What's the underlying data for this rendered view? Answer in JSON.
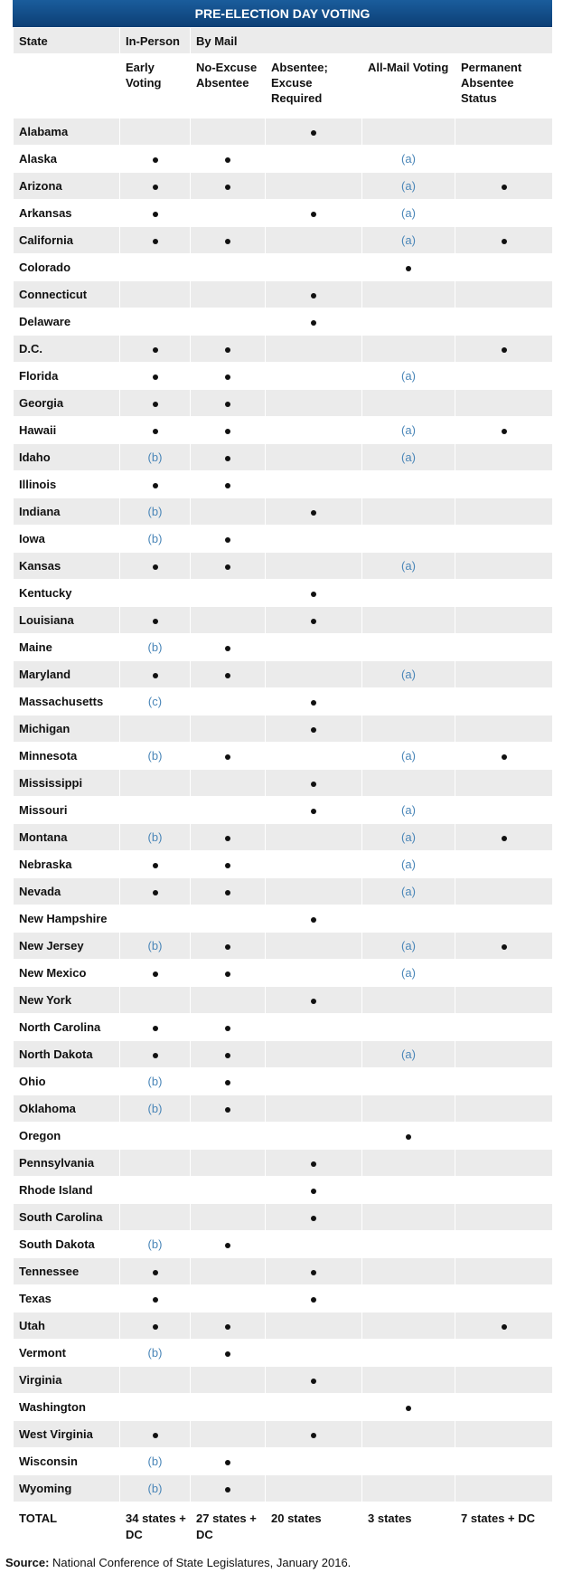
{
  "title": "PRE-ELECTION DAY VOTING",
  "group_headers": [
    "State",
    "In-Person",
    "By Mail"
  ],
  "sub_headers": [
    "",
    "Early Voting",
    "No-Excuse Absentee",
    "Absentee; Excuse Required",
    "All-Mail Voting",
    "Permanent Absentee Status"
  ],
  "rows": [
    {
      "state": "Alabama",
      "early": "",
      "noexcuse": "",
      "excuse": "dot",
      "allmail": "",
      "permanent": ""
    },
    {
      "state": "Alaska",
      "early": "dot",
      "noexcuse": "dot",
      "excuse": "",
      "allmail": "(a)",
      "permanent": ""
    },
    {
      "state": "Arizona",
      "early": "dot",
      "noexcuse": "dot",
      "excuse": "",
      "allmail": "(a)",
      "permanent": "dot"
    },
    {
      "state": "Arkansas",
      "early": "dot",
      "noexcuse": "",
      "excuse": "dot",
      "allmail": "(a)",
      "permanent": ""
    },
    {
      "state": "California",
      "early": "dot",
      "noexcuse": "dot",
      "excuse": "",
      "allmail": "(a)",
      "permanent": "dot"
    },
    {
      "state": "Colorado",
      "early": "",
      "noexcuse": "",
      "excuse": "",
      "allmail": "dot",
      "permanent": ""
    },
    {
      "state": "Connecticut",
      "early": "",
      "noexcuse": "",
      "excuse": "dot",
      "allmail": "",
      "permanent": ""
    },
    {
      "state": "Delaware",
      "early": "",
      "noexcuse": "",
      "excuse": "dot",
      "allmail": "",
      "permanent": ""
    },
    {
      "state": "D.C.",
      "early": "dot",
      "noexcuse": "dot",
      "excuse": "",
      "allmail": "",
      "permanent": "dot"
    },
    {
      "state": "Florida",
      "early": "dot",
      "noexcuse": "dot",
      "excuse": "",
      "allmail": "(a)",
      "permanent": ""
    },
    {
      "state": "Georgia",
      "early": "dot",
      "noexcuse": "dot",
      "excuse": "",
      "allmail": "",
      "permanent": ""
    },
    {
      "state": "Hawaii",
      "early": "dot",
      "noexcuse": "dot",
      "excuse": "",
      "allmail": "(a)",
      "permanent": "dot"
    },
    {
      "state": "Idaho",
      "early": "(b)",
      "noexcuse": "dot",
      "excuse": "",
      "allmail": "(a)",
      "permanent": ""
    },
    {
      "state": "Illinois",
      "early": "dot",
      "noexcuse": "dot",
      "excuse": "",
      "allmail": "",
      "permanent": ""
    },
    {
      "state": "Indiana",
      "early": "(b)",
      "noexcuse": "",
      "excuse": "dot",
      "allmail": "",
      "permanent": ""
    },
    {
      "state": "Iowa",
      "early": "(b)",
      "noexcuse": "dot",
      "excuse": "",
      "allmail": "",
      "permanent": ""
    },
    {
      "state": "Kansas",
      "early": "dot",
      "noexcuse": "dot",
      "excuse": "",
      "allmail": "(a)",
      "permanent": ""
    },
    {
      "state": "Kentucky",
      "early": "",
      "noexcuse": "",
      "excuse": "dot",
      "allmail": "",
      "permanent": ""
    },
    {
      "state": "Louisiana",
      "early": "dot",
      "noexcuse": "",
      "excuse": "dot",
      "allmail": "",
      "permanent": ""
    },
    {
      "state": "Maine",
      "early": "(b)",
      "noexcuse": "dot",
      "excuse": "",
      "allmail": "",
      "permanent": ""
    },
    {
      "state": "Maryland",
      "early": "dot",
      "noexcuse": "dot",
      "excuse": "",
      "allmail": "(a)",
      "permanent": ""
    },
    {
      "state": "Massachusetts",
      "early": "(c)",
      "noexcuse": "",
      "excuse": "dot",
      "allmail": "",
      "permanent": ""
    },
    {
      "state": "Michigan",
      "early": "",
      "noexcuse": "",
      "excuse": "dot",
      "allmail": "",
      "permanent": ""
    },
    {
      "state": "Minnesota",
      "early": "(b)",
      "noexcuse": "dot",
      "excuse": "",
      "allmail": "(a)",
      "permanent": "dot"
    },
    {
      "state": "Mississippi",
      "early": "",
      "noexcuse": "",
      "excuse": "dot",
      "allmail": "",
      "permanent": ""
    },
    {
      "state": "Missouri",
      "early": "",
      "noexcuse": "",
      "excuse": "dot",
      "allmail": "(a)",
      "permanent": ""
    },
    {
      "state": "Montana",
      "early": "(b)",
      "noexcuse": "dot",
      "excuse": "",
      "allmail": "(a)",
      "permanent": "dot"
    },
    {
      "state": "Nebraska",
      "early": "dot",
      "noexcuse": "dot",
      "excuse": "",
      "allmail": "(a)",
      "permanent": ""
    },
    {
      "state": "Nevada",
      "early": "dot",
      "noexcuse": "dot",
      "excuse": "",
      "allmail": "(a)",
      "permanent": ""
    },
    {
      "state": "New Hampshire",
      "early": "",
      "noexcuse": "",
      "excuse": "dot",
      "allmail": "",
      "permanent": ""
    },
    {
      "state": "New Jersey",
      "early": "(b)",
      "noexcuse": "dot",
      "excuse": "",
      "allmail": "(a)",
      "permanent": "dot"
    },
    {
      "state": "New Mexico",
      "early": "dot",
      "noexcuse": "dot",
      "excuse": "",
      "allmail": "(a)",
      "permanent": ""
    },
    {
      "state": "New York",
      "early": "",
      "noexcuse": "",
      "excuse": "dot",
      "allmail": "",
      "permanent": ""
    },
    {
      "state": "North Carolina",
      "early": "dot",
      "noexcuse": "dot",
      "excuse": "",
      "allmail": "",
      "permanent": ""
    },
    {
      "state": "North Dakota",
      "early": "dot",
      "noexcuse": "dot",
      "excuse": "",
      "allmail": "(a)",
      "permanent": ""
    },
    {
      "state": "Ohio",
      "early": "(b)",
      "noexcuse": "dot",
      "excuse": "",
      "allmail": "",
      "permanent": ""
    },
    {
      "state": "Oklahoma",
      "early": "(b)",
      "noexcuse": "dot",
      "excuse": "",
      "allmail": "",
      "permanent": ""
    },
    {
      "state": "Oregon",
      "early": "",
      "noexcuse": "",
      "excuse": "",
      "allmail": "dot",
      "permanent": ""
    },
    {
      "state": "Pennsylvania",
      "early": "",
      "noexcuse": "",
      "excuse": "dot",
      "allmail": "",
      "permanent": ""
    },
    {
      "state": "Rhode Island",
      "early": "",
      "noexcuse": "",
      "excuse": "dot",
      "allmail": "",
      "permanent": ""
    },
    {
      "state": "South Carolina",
      "early": "",
      "noexcuse": "",
      "excuse": "dot",
      "allmail": "",
      "permanent": ""
    },
    {
      "state": "South Dakota",
      "early": "(b)",
      "noexcuse": "dot",
      "excuse": "",
      "allmail": "",
      "permanent": ""
    },
    {
      "state": "Tennessee",
      "early": "dot",
      "noexcuse": "",
      "excuse": "dot",
      "allmail": "",
      "permanent": ""
    },
    {
      "state": "Texas",
      "early": "dot",
      "noexcuse": "",
      "excuse": "dot",
      "allmail": "",
      "permanent": ""
    },
    {
      "state": "Utah",
      "early": "dot",
      "noexcuse": "dot",
      "excuse": "",
      "allmail": "",
      "permanent": "dot"
    },
    {
      "state": "Vermont",
      "early": "(b)",
      "noexcuse": "dot",
      "excuse": "",
      "allmail": "",
      "permanent": ""
    },
    {
      "state": "Virginia",
      "early": "",
      "noexcuse": "",
      "excuse": "dot",
      "allmail": "",
      "permanent": ""
    },
    {
      "state": "Washington",
      "early": "",
      "noexcuse": "",
      "excuse": "",
      "allmail": "dot",
      "permanent": ""
    },
    {
      "state": "West Virginia",
      "early": "dot",
      "noexcuse": "",
      "excuse": "dot",
      "allmail": "",
      "permanent": ""
    },
    {
      "state": "Wisconsin",
      "early": "(b)",
      "noexcuse": "dot",
      "excuse": "",
      "allmail": "",
      "permanent": ""
    },
    {
      "state": "Wyoming",
      "early": "(b)",
      "noexcuse": "dot",
      "excuse": "",
      "allmail": "",
      "permanent": ""
    }
  ],
  "totals": [
    "TOTAL",
    "34 states + DC",
    "27 states + DC",
    "20 states",
    "3 states",
    "7 states + DC"
  ],
  "source_label": "Source:",
  "source_text": " National Conference of State Legislatures, January 2016.",
  "colors": {
    "header_bg": "#124f8c",
    "note": "#4a86b8",
    "shade": "#ebebeb"
  }
}
